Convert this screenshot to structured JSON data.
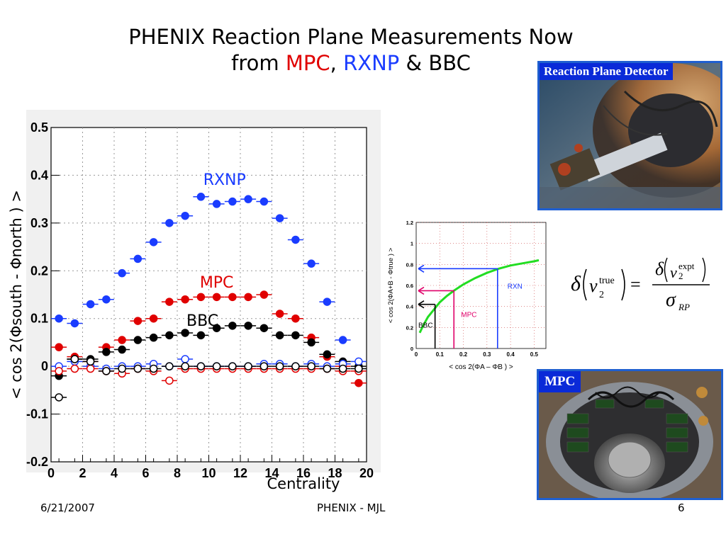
{
  "slide": {
    "title_line1": "PHENIX Reaction Plane Measurements Now",
    "title_from": "from ",
    "title_mpc": "MPC",
    "title_comma": ", ",
    "title_rxnp": "RXNP",
    "title_rest": " & BBC",
    "footer_date": "6/21/2007",
    "footer_center": "PHENIX - MJL",
    "footer_page": "6"
  },
  "photos": {
    "top_label": "Reaction Plane Detector",
    "bottom_label": "MPC"
  },
  "colors": {
    "rxnp": "#1a3cff",
    "mpc": "#e00000",
    "bbc": "#000000",
    "curve": "#22dd22",
    "photo_border": "#1f5fd0"
  },
  "chart_data": [
    {
      "type": "scatter",
      "xlabel": "Centrality",
      "ylabel": "< cos 2(Φsouth - Φnorth ) >",
      "xlim": [
        0,
        20
      ],
      "ylim": [
        -0.2,
        0.5
      ],
      "xticks": [
        "0",
        "2",
        "4",
        "6",
        "8",
        "10",
        "12",
        "14",
        "16",
        "18",
        "20"
      ],
      "yticks": [
        "-0.2",
        "-0.1",
        "0",
        "0.1",
        "0.2",
        "0.3",
        "0.4",
        "0.5"
      ],
      "grid": true,
      "annotations": [
        {
          "text": "RXNP",
          "color": "#1a3cff",
          "at": [
            11,
            0.38
          ]
        },
        {
          "text": "MPC",
          "color": "#e00000",
          "at": [
            10.5,
            0.165
          ]
        },
        {
          "text": "BBC",
          "color": "#000000",
          "at": [
            9.6,
            0.085
          ]
        }
      ],
      "series": [
        {
          "color": "#1a3cff",
          "filled": true,
          "x": [
            0.5,
            1.5,
            2.5,
            3.5,
            4.5,
            5.5,
            6.5,
            7.5,
            8.5,
            9.5,
            10.5,
            11.5,
            12.5,
            13.5,
            14.5,
            15.5,
            16.5,
            17.5,
            18.5
          ],
          "y": [
            0.1,
            0.09,
            0.13,
            0.14,
            0.195,
            0.225,
            0.26,
            0.3,
            0.315,
            0.355,
            0.34,
            0.345,
            0.35,
            0.345,
            0.31,
            0.265,
            0.215,
            0.135,
            0.055
          ]
        },
        {
          "color": "#e00000",
          "filled": true,
          "x": [
            0.5,
            1.5,
            2.5,
            3.5,
            4.5,
            5.5,
            6.5,
            7.5,
            8.5,
            9.5,
            10.5,
            11.5,
            12.5,
            13.5,
            14.5,
            15.5,
            16.5,
            17.5,
            18.5,
            19.5
          ],
          "y": [
            0.04,
            0.02,
            0.01,
            0.04,
            0.055,
            0.095,
            0.1,
            0.135,
            0.14,
            0.145,
            0.145,
            0.145,
            0.145,
            0.15,
            0.11,
            0.1,
            0.06,
            0.02,
            0.0,
            -0.035
          ]
        },
        {
          "color": "#000000",
          "filled": true,
          "x": [
            0.5,
            1.5,
            2.5,
            3.5,
            4.5,
            5.5,
            6.5,
            7.5,
            8.5,
            9.5,
            10.5,
            11.5,
            12.5,
            13.5,
            14.5,
            15.5,
            16.5,
            17.5,
            18.5,
            19.5
          ],
          "y": [
            -0.02,
            0.015,
            0.015,
            0.03,
            0.035,
            0.055,
            0.06,
            0.065,
            0.07,
            0.065,
            0.08,
            0.085,
            0.085,
            0.08,
            0.065,
            0.065,
            0.05,
            0.025,
            0.01,
            0.0
          ]
        },
        {
          "color": "#1a3cff",
          "filled": false,
          "x": [
            0.5,
            1.5,
            2.5,
            3.5,
            4.5,
            5.5,
            6.5,
            7.5,
            8.5,
            9.5,
            10.5,
            11.5,
            12.5,
            13.5,
            14.5,
            15.5,
            16.5,
            17.5,
            18.5,
            19.5
          ],
          "y": [
            0.0,
            0.01,
            0.0,
            -0.005,
            0.0,
            0.0,
            0.005,
            0.0,
            0.015,
            0.0,
            0.0,
            0.0,
            0.0,
            0.005,
            0.005,
            0.0,
            0.005,
            0.0,
            0.005,
            0.01
          ]
        },
        {
          "color": "#e00000",
          "filled": false,
          "x": [
            0.5,
            1.5,
            2.5,
            3.5,
            4.5,
            5.5,
            6.5,
            7.5,
            8.5,
            9.5,
            10.5,
            11.5,
            12.5,
            13.5,
            14.5,
            15.5,
            16.5,
            17.5,
            18.5,
            19.5
          ],
          "y": [
            -0.01,
            -0.005,
            -0.005,
            -0.01,
            -0.015,
            -0.005,
            -0.01,
            -0.03,
            -0.005,
            -0.005,
            -0.005,
            -0.005,
            -0.005,
            -0.005,
            -0.005,
            -0.005,
            -0.005,
            -0.005,
            -0.01,
            -0.01
          ]
        },
        {
          "color": "#000000",
          "filled": false,
          "x": [
            0.5,
            1.5,
            2.5,
            3.5,
            4.5,
            5.5,
            6.5,
            7.5,
            8.5,
            9.5,
            10.5,
            11.5,
            12.5,
            13.5,
            14.5,
            15.5,
            16.5,
            17.5,
            18.5,
            19.5
          ],
          "y": [
            -0.065,
            0.015,
            0.01,
            -0.01,
            -0.005,
            -0.005,
            -0.005,
            0.0,
            0.0,
            0.0,
            0.0,
            0.0,
            0.0,
            0.0,
            0.0,
            0.0,
            0.0,
            -0.005,
            -0.005,
            -0.005
          ]
        }
      ]
    },
    {
      "type": "line",
      "xlabel": "< cos 2(ΦA – ΦB ) >",
      "ylabel": "< cos 2(ΦA+B - Φtrue ) >",
      "xlim": [
        0,
        0.55
      ],
      "ylim": [
        0,
        1.2
      ],
      "xticks": [
        "0",
        "0.1",
        "0.2",
        "0.3",
        "0.4",
        "0.5"
      ],
      "yticks": [
        "0",
        "0.2",
        "0.4",
        "0.6",
        "0.8",
        "1",
        "1.2"
      ],
      "grid": true,
      "curve": {
        "color": "#22dd22",
        "x": [
          0.015,
          0.03,
          0.05,
          0.075,
          0.1,
          0.13,
          0.16,
          0.2,
          0.25,
          0.3,
          0.35,
          0.4,
          0.45,
          0.5,
          0.52
        ],
        "y": [
          0.15,
          0.22,
          0.3,
          0.37,
          0.44,
          0.5,
          0.55,
          0.61,
          0.67,
          0.72,
          0.76,
          0.79,
          0.81,
          0.83,
          0.84
        ]
      },
      "markers": [
        {
          "label": "BBC",
          "color": "#000000",
          "x": 0.08,
          "y": 0.42
        },
        {
          "label": "MPC",
          "color": "#e0006a",
          "x": 0.16,
          "y": 0.55
        },
        {
          "label": "RXN",
          "color": "#1a3cff",
          "x": 0.345,
          "y": 0.76
        }
      ]
    }
  ]
}
